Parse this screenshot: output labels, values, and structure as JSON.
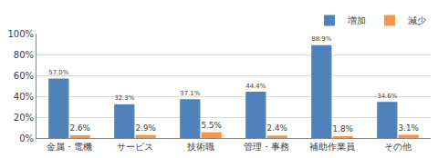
{
  "chart_data": {
    "type": "bar",
    "categories": [
      "金属・電機",
      "サービス",
      "技術職",
      "管理・事務",
      "補助作業員",
      "その他"
    ],
    "series": [
      {
        "name": "増加",
        "color": "#4f81bd",
        "values": [
          57.0,
          32.3,
          37.1,
          44.4,
          88.9,
          34.6
        ],
        "value_labels": [
          "57.0%",
          "32.3%",
          "37.1%",
          "44.4%",
          "88.9%",
          "34.6%"
        ]
      },
      {
        "name": "減少",
        "color": "#f79646",
        "values": [
          2.6,
          2.9,
          5.5,
          2.4,
          1.8,
          3.1
        ],
        "value_labels": [
          "2.6%",
          "2.9%",
          "5.5%",
          "2.4%",
          "1.8%",
          "3.1%"
        ]
      }
    ],
    "ylim": [
      0,
      100
    ],
    "yticks": [
      {
        "value": 0,
        "label": "0%"
      },
      {
        "value": 20,
        "label": "20%"
      },
      {
        "value": 40,
        "label": "40%"
      },
      {
        "value": 60,
        "label": "60%"
      },
      {
        "value": 80,
        "label": "80%"
      },
      {
        "value": 100,
        "label": "100%"
      }
    ],
    "grid": true,
    "legend": "top-right",
    "data_labels": true
  }
}
